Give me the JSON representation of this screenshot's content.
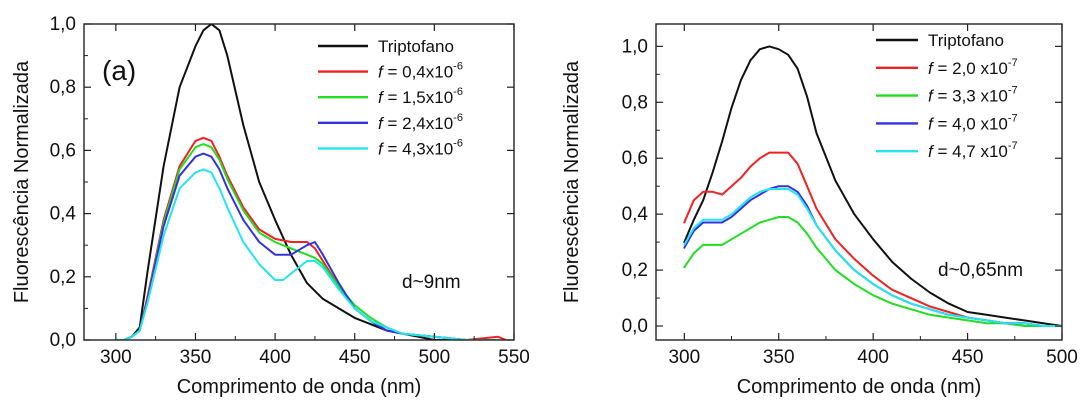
{
  "chart_data": [
    {
      "type": "line",
      "panel_label": "(a)",
      "annotation": "d~9nm",
      "xlabel": "Comprimento de onda (nm)",
      "ylabel": "Fluorescência Normalizada",
      "xlim": [
        280,
        550
      ],
      "ylim": [
        0.0,
        1.0
      ],
      "xticks": [
        300,
        350,
        400,
        450,
        500,
        550
      ],
      "xtick_labels": [
        "300",
        "350",
        "400",
        "450",
        "500",
        "550"
      ],
      "yticks": [
        0.0,
        0.2,
        0.4,
        0.6,
        0.8,
        1.0
      ],
      "ytick_labels": [
        "0,0",
        "0,2",
        "0,4",
        "0,6",
        "0,8",
        "1,0"
      ],
      "grid": false,
      "legend_position": "top-right",
      "series": [
        {
          "name": "Triptofano",
          "legend_prefix": "",
          "legend_text": "Triptofano",
          "legend_exp": "",
          "color": "#111111",
          "x": [
            300,
            305,
            310,
            315,
            320,
            330,
            340,
            350,
            355,
            360,
            365,
            370,
            380,
            390,
            400,
            410,
            420,
            430,
            440,
            450,
            460,
            470,
            480,
            490,
            500,
            520,
            540
          ],
          "y": [
            0.0,
            0.0,
            0.01,
            0.04,
            0.22,
            0.55,
            0.8,
            0.93,
            0.98,
            1.0,
            0.98,
            0.9,
            0.68,
            0.5,
            0.38,
            0.27,
            0.18,
            0.13,
            0.1,
            0.07,
            0.05,
            0.03,
            0.02,
            0.01,
            0.0,
            0.0,
            0.0
          ]
        },
        {
          "name": "f = 0,4x10-6",
          "legend_prefix": "f",
          "legend_text": " = 0,4x10",
          "legend_exp": "-6",
          "color": "#ee2222",
          "x": [
            300,
            305,
            310,
            315,
            320,
            330,
            340,
            350,
            355,
            360,
            365,
            370,
            380,
            390,
            400,
            410,
            420,
            425,
            430,
            440,
            450,
            460,
            470,
            480,
            500,
            520,
            540,
            545
          ],
          "y": [
            0.0,
            0.0,
            0.01,
            0.03,
            0.14,
            0.38,
            0.55,
            0.63,
            0.64,
            0.63,
            0.58,
            0.52,
            0.42,
            0.35,
            0.32,
            0.31,
            0.31,
            0.29,
            0.25,
            0.17,
            0.1,
            0.06,
            0.03,
            0.02,
            0.01,
            0.0,
            0.01,
            0.0
          ]
        },
        {
          "name": "f = 1,5x10-6",
          "legend_prefix": "f",
          "legend_text": " = 1,5x10",
          "legend_exp": "-6",
          "color": "#22dd22",
          "x": [
            300,
            305,
            310,
            315,
            320,
            330,
            340,
            350,
            355,
            360,
            365,
            370,
            380,
            390,
            400,
            410,
            420,
            425,
            430,
            440,
            450,
            460,
            470,
            480,
            500,
            520,
            540
          ],
          "y": [
            0.0,
            0.0,
            0.01,
            0.03,
            0.13,
            0.37,
            0.54,
            0.61,
            0.62,
            0.61,
            0.57,
            0.51,
            0.41,
            0.34,
            0.31,
            0.29,
            0.27,
            0.26,
            0.24,
            0.17,
            0.11,
            0.07,
            0.04,
            0.02,
            0.01,
            0.0,
            0.0
          ]
        },
        {
          "name": "f = 2,4x10-6",
          "legend_prefix": "f",
          "legend_text": " = 2,4x10",
          "legend_exp": "-6",
          "color": "#3333dd",
          "x": [
            300,
            305,
            310,
            315,
            320,
            330,
            340,
            350,
            355,
            360,
            365,
            370,
            380,
            390,
            400,
            410,
            420,
            425,
            430,
            440,
            450,
            460,
            470,
            480,
            500,
            520,
            540
          ],
          "y": [
            0.0,
            0.0,
            0.01,
            0.03,
            0.13,
            0.36,
            0.52,
            0.58,
            0.59,
            0.58,
            0.54,
            0.48,
            0.38,
            0.31,
            0.27,
            0.27,
            0.3,
            0.31,
            0.27,
            0.18,
            0.1,
            0.06,
            0.03,
            0.02,
            0.01,
            0.0,
            0.0
          ]
        },
        {
          "name": "f = 4,3x10-6",
          "legend_prefix": "f",
          "legend_text": " = 4,3x10",
          "legend_exp": "-6",
          "color": "#22e5f0",
          "x": [
            300,
            305,
            310,
            315,
            320,
            330,
            340,
            350,
            355,
            360,
            365,
            370,
            380,
            390,
            400,
            405,
            410,
            420,
            425,
            430,
            440,
            450,
            460,
            470,
            480,
            500,
            520,
            540
          ],
          "y": [
            0.0,
            0.0,
            0.01,
            0.03,
            0.12,
            0.33,
            0.48,
            0.53,
            0.54,
            0.53,
            0.48,
            0.42,
            0.31,
            0.24,
            0.19,
            0.19,
            0.21,
            0.25,
            0.25,
            0.23,
            0.16,
            0.1,
            0.06,
            0.04,
            0.02,
            0.01,
            0.0,
            0.0
          ]
        }
      ]
    },
    {
      "type": "line",
      "panel_label": "",
      "annotation": "d~0,65nm",
      "xlabel": "Comprimento de onda (nm)",
      "ylabel": "Fluorescência Normalizada",
      "xlim": [
        285,
        500
      ],
      "ylim": [
        -0.05,
        1.08
      ],
      "xticks": [
        300,
        350,
        400,
        450,
        500
      ],
      "xtick_labels": [
        "300",
        "350",
        "400",
        "450",
        "500"
      ],
      "yticks": [
        0.0,
        0.2,
        0.4,
        0.6,
        0.8,
        1.0
      ],
      "ytick_labels": [
        "0,0",
        "0,2",
        "0,4",
        "0,6",
        "0,8",
        "1,0"
      ],
      "grid": false,
      "legend_position": "top-right",
      "series": [
        {
          "name": "Triptofano",
          "legend_prefix": "",
          "legend_text": "Triptofano",
          "legend_exp": "",
          "color": "#111111",
          "x": [
            300,
            305,
            310,
            315,
            320,
            325,
            330,
            335,
            340,
            345,
            350,
            355,
            360,
            365,
            370,
            380,
            390,
            400,
            410,
            420,
            430,
            440,
            450,
            460,
            470,
            480,
            490,
            500
          ],
          "y": [
            0.3,
            0.38,
            0.45,
            0.55,
            0.66,
            0.78,
            0.88,
            0.95,
            0.99,
            1.0,
            0.99,
            0.97,
            0.92,
            0.82,
            0.69,
            0.52,
            0.4,
            0.31,
            0.23,
            0.17,
            0.12,
            0.08,
            0.05,
            0.04,
            0.03,
            0.02,
            0.01,
            0.0
          ]
        },
        {
          "name": "f = 2,0 x10-7",
          "legend_prefix": "f",
          "legend_text": " = 2,0 x10",
          "legend_exp": "-7",
          "color": "#ee2222",
          "x": [
            300,
            305,
            310,
            315,
            320,
            325,
            330,
            335,
            340,
            345,
            350,
            355,
            360,
            365,
            370,
            380,
            390,
            400,
            410,
            420,
            430,
            440,
            450,
            460,
            470,
            480,
            490,
            500
          ],
          "y": [
            0.37,
            0.45,
            0.48,
            0.48,
            0.47,
            0.5,
            0.53,
            0.57,
            0.6,
            0.62,
            0.62,
            0.62,
            0.58,
            0.5,
            0.42,
            0.31,
            0.24,
            0.18,
            0.13,
            0.1,
            0.07,
            0.05,
            0.03,
            0.02,
            0.01,
            0.01,
            0.0,
            0.0
          ]
        },
        {
          "name": "f = 3,3 x10-7",
          "legend_prefix": "f",
          "legend_text": " = 3,3 x10",
          "legend_exp": "-7",
          "color": "#22dd22",
          "x": [
            300,
            305,
            310,
            315,
            320,
            325,
            330,
            335,
            340,
            345,
            350,
            355,
            360,
            365,
            370,
            380,
            390,
            400,
            410,
            420,
            430,
            440,
            450,
            460,
            470,
            480,
            490,
            500
          ],
          "y": [
            0.21,
            0.26,
            0.29,
            0.29,
            0.29,
            0.31,
            0.33,
            0.35,
            0.37,
            0.38,
            0.39,
            0.39,
            0.37,
            0.33,
            0.28,
            0.2,
            0.15,
            0.11,
            0.08,
            0.06,
            0.04,
            0.03,
            0.02,
            0.01,
            0.01,
            0.0,
            0.0,
            0.0
          ]
        },
        {
          "name": "f = 4,0 x10-7",
          "legend_prefix": "f",
          "legend_text": " = 4,0 x10",
          "legend_exp": "-7",
          "color": "#3333dd",
          "x": [
            300,
            305,
            310,
            315,
            320,
            325,
            330,
            335,
            340,
            345,
            350,
            355,
            360,
            365,
            370,
            380,
            390,
            400,
            410,
            420,
            430,
            440,
            450,
            460,
            470,
            480,
            490,
            500
          ],
          "y": [
            0.28,
            0.34,
            0.37,
            0.37,
            0.37,
            0.39,
            0.42,
            0.45,
            0.47,
            0.49,
            0.5,
            0.5,
            0.48,
            0.43,
            0.36,
            0.27,
            0.2,
            0.15,
            0.11,
            0.08,
            0.06,
            0.04,
            0.03,
            0.02,
            0.01,
            0.01,
            0.0,
            0.0
          ]
        },
        {
          "name": "f = 4,7 x10-7",
          "legend_prefix": "f",
          "legend_text": " = 4,7 x10",
          "legend_exp": "-7",
          "color": "#22e5f0",
          "x": [
            300,
            305,
            310,
            315,
            320,
            325,
            330,
            335,
            340,
            345,
            350,
            355,
            360,
            365,
            370,
            380,
            390,
            400,
            410,
            420,
            430,
            440,
            450,
            460,
            470,
            480,
            490,
            500
          ],
          "y": [
            0.29,
            0.35,
            0.38,
            0.38,
            0.38,
            0.4,
            0.43,
            0.46,
            0.48,
            0.49,
            0.49,
            0.49,
            0.47,
            0.42,
            0.36,
            0.27,
            0.2,
            0.15,
            0.11,
            0.08,
            0.06,
            0.04,
            0.03,
            0.02,
            0.01,
            0.01,
            0.0,
            0.0
          ]
        }
      ]
    }
  ]
}
